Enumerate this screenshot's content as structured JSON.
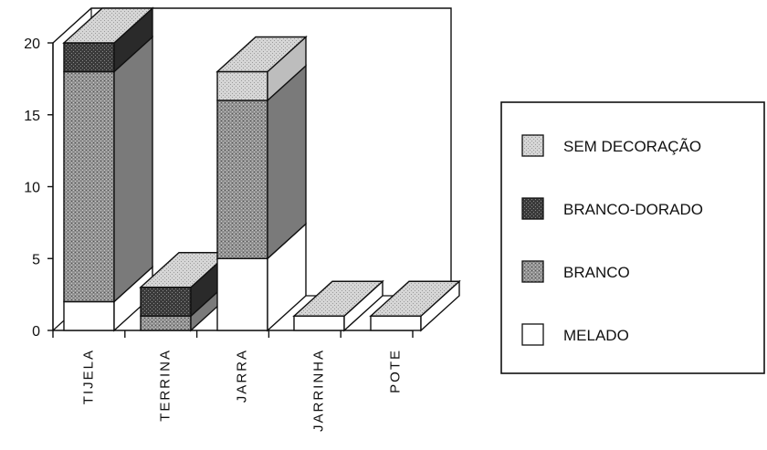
{
  "chart_data": {
    "type": "bar",
    "stacked": true,
    "three_d": true,
    "title": "",
    "xlabel": "",
    "ylabel": "",
    "ylim": [
      0,
      20
    ],
    "yticks": [
      0,
      5,
      10,
      15,
      20
    ],
    "categories": [
      "TIJELA",
      "TERRINA",
      "JARRA",
      "JARRINHA",
      "POTE"
    ],
    "series": [
      {
        "name": "MELADO",
        "values": [
          2,
          0,
          5,
          1,
          1
        ]
      },
      {
        "name": "BRANCO",
        "values": [
          16,
          1,
          11,
          0,
          0
        ]
      },
      {
        "name": "BRANCO-DORADO",
        "values": [
          2,
          2,
          0,
          0,
          0
        ]
      },
      {
        "name": "SEM DECORAÇÃO",
        "values": [
          0,
          0,
          2,
          0,
          0
        ]
      }
    ],
    "legend": {
      "position": "right",
      "order": [
        "SEM DECORAÇÃO",
        "BRANCO-DORADO",
        "BRANCO",
        "MELADO"
      ]
    },
    "colors": {
      "MELADO": "#ffffff",
      "BRANCO": "#8f8f8f",
      "BRANCO-DORADO": "#3a3a3a",
      "SEM DECORAÇÃO": "#cfcfcf"
    }
  }
}
